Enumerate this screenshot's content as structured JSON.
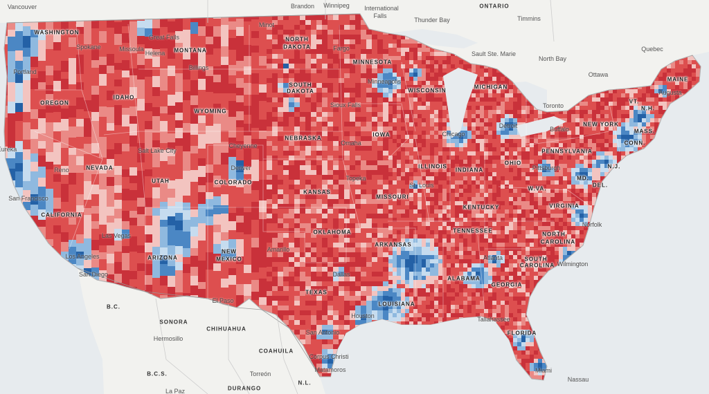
{
  "map": {
    "colors": {
      "water": "#e7ebee",
      "land": "#f4f4f2",
      "border": "#c9c9c9",
      "strong_rep": "#c9313a",
      "rep": "#dd4f4f",
      "lean_rep": "#ea8a86",
      "tilt_rep": "#f3c4c0",
      "tilt_dem": "#c6dcef",
      "lean_dem": "#8fb9df",
      "dem": "#4b87c4",
      "strong_dem": "#2461a6"
    },
    "state_labels": [
      {
        "id": "washington",
        "text": "WASHINGTON"
      },
      {
        "id": "oregon",
        "text": "OREGON"
      },
      {
        "id": "california",
        "text": "CALIFORNIA"
      },
      {
        "id": "nevada",
        "text": "NEVADA"
      },
      {
        "id": "idaho",
        "text": "IDAHO"
      },
      {
        "id": "montana",
        "text": "MONTANA"
      },
      {
        "id": "wyoming",
        "text": "WYOMING"
      },
      {
        "id": "utah",
        "text": "UTAH"
      },
      {
        "id": "colorado",
        "text": "COLORADO"
      },
      {
        "id": "arizona",
        "text": "ARIZONA"
      },
      {
        "id": "new-mexico-1",
        "text": "NEW"
      },
      {
        "id": "new-mexico-2",
        "text": "MEXICO"
      },
      {
        "id": "north-dakota-1",
        "text": "NORTH"
      },
      {
        "id": "north-dakota-2",
        "text": "DAKOTA"
      },
      {
        "id": "south-dakota-1",
        "text": "SOUTH"
      },
      {
        "id": "south-dakota-2",
        "text": "DAKOTA"
      },
      {
        "id": "nebraska",
        "text": "NEBRASKA"
      },
      {
        "id": "kansas",
        "text": "KANSAS"
      },
      {
        "id": "oklahoma",
        "text": "OKLAHOMA"
      },
      {
        "id": "texas",
        "text": "TEXAS"
      },
      {
        "id": "minnesota",
        "text": "MINNESOTA"
      },
      {
        "id": "iowa",
        "text": "IOWA"
      },
      {
        "id": "missouri",
        "text": "MISSOURI"
      },
      {
        "id": "arkansas",
        "text": "ARKANSAS"
      },
      {
        "id": "louisiana",
        "text": "LOUISIANA"
      },
      {
        "id": "wisconsin",
        "text": "WISCONSIN"
      },
      {
        "id": "illinois",
        "text": "ILLINOIS"
      },
      {
        "id": "michigan",
        "text": "MICHIGAN"
      },
      {
        "id": "indiana",
        "text": "INDIANA"
      },
      {
        "id": "ohio",
        "text": "OHIO"
      },
      {
        "id": "kentucky",
        "text": "KENTUCKY"
      },
      {
        "id": "tennessee",
        "text": "TENNESSEE"
      },
      {
        "id": "alabama",
        "text": "ALABAMA"
      },
      {
        "id": "georgia",
        "text": "GEORGIA"
      },
      {
        "id": "florida",
        "text": "FLORIDA"
      },
      {
        "id": "south-carolina-1",
        "text": "SOUTH"
      },
      {
        "id": "south-carolina-2",
        "text": "CAROLINA"
      },
      {
        "id": "north-carolina-1",
        "text": "NORTH"
      },
      {
        "id": "north-carolina-2",
        "text": "CAROLINA"
      },
      {
        "id": "virginia",
        "text": "VIRGINIA"
      },
      {
        "id": "west-virginia",
        "text": "W.VA."
      },
      {
        "id": "pennsylvania",
        "text": "PENNSYLVANIA"
      },
      {
        "id": "new-york",
        "text": "NEW YORK"
      },
      {
        "id": "maryland",
        "text": "MD."
      },
      {
        "id": "delaware",
        "text": "DEL."
      },
      {
        "id": "new-jersey",
        "text": "N.J."
      },
      {
        "id": "connecticut",
        "text": "CONN."
      },
      {
        "id": "massachusetts",
        "text": "MASS."
      },
      {
        "id": "vermont",
        "text": "VT."
      },
      {
        "id": "new-hampshire",
        "text": "N.H."
      },
      {
        "id": "maine",
        "text": "MAINE"
      }
    ],
    "foreign_labels": [
      {
        "id": "ontario",
        "text": "ONTARIO"
      },
      {
        "id": "bc-mexico",
        "text": "B.C."
      },
      {
        "id": "sonora",
        "text": "SONORA"
      },
      {
        "id": "chihuahua",
        "text": "CHIHUAHUA"
      },
      {
        "id": "coahuila",
        "text": "COAHUILA"
      },
      {
        "id": "durango",
        "text": "DURANGO"
      },
      {
        "id": "bcs",
        "text": "B.C.S."
      },
      {
        "id": "nuevo-leon",
        "text": "N.L."
      }
    ],
    "city_labels": [
      {
        "id": "vancouver",
        "text": "Vancouver"
      },
      {
        "id": "brandon",
        "text": "Brandon"
      },
      {
        "id": "winnipeg",
        "text": "Winnipeg"
      },
      {
        "id": "international-falls-1",
        "text": "International"
      },
      {
        "id": "international-falls-2",
        "text": "Falls"
      },
      {
        "id": "thunder-bay",
        "text": "Thunder Bay"
      },
      {
        "id": "timmins",
        "text": "Timmins"
      },
      {
        "id": "quebec",
        "text": "Quebec"
      },
      {
        "id": "sault-ste-marie",
        "text": "Sault Ste. Marie"
      },
      {
        "id": "north-bay",
        "text": "North Bay"
      },
      {
        "id": "ottawa",
        "text": "Ottawa"
      },
      {
        "id": "augusta",
        "text": "Augusta"
      },
      {
        "id": "toronto",
        "text": "Toronto"
      },
      {
        "id": "buffalo",
        "text": "Buffalo"
      },
      {
        "id": "spokane",
        "text": "Spokane"
      },
      {
        "id": "great-falls",
        "text": "Great Falls"
      },
      {
        "id": "missoula",
        "text": "Missoula"
      },
      {
        "id": "helena",
        "text": "Helena"
      },
      {
        "id": "portland",
        "text": "Portland"
      },
      {
        "id": "billings",
        "text": "Billings"
      },
      {
        "id": "minot",
        "text": "Minot"
      },
      {
        "id": "fargo",
        "text": "Fargo"
      },
      {
        "id": "minneapolis",
        "text": "Minneapolis"
      },
      {
        "id": "sioux-falls",
        "text": "Sioux Falls"
      },
      {
        "id": "eureka",
        "text": "Eureka"
      },
      {
        "id": "reno",
        "text": "Reno"
      },
      {
        "id": "salt-lake-city",
        "text": "Salt Lake City"
      },
      {
        "id": "cheyenne",
        "text": "Cheyenne"
      },
      {
        "id": "omaha",
        "text": "Omaha"
      },
      {
        "id": "denver",
        "text": "Denver"
      },
      {
        "id": "chicago",
        "text": "Chicago"
      },
      {
        "id": "detroit",
        "text": "Detroit"
      },
      {
        "id": "pittsburgh",
        "text": "Pittsburgh"
      },
      {
        "id": "san-francisco",
        "text": "San Francisco"
      },
      {
        "id": "topeka",
        "text": "Topeka"
      },
      {
        "id": "st-louis",
        "text": "St. Louis"
      },
      {
        "id": "las-vegas",
        "text": "Las Vegas"
      },
      {
        "id": "norfolk",
        "text": "Norfolk"
      },
      {
        "id": "amarillo",
        "text": "Amarillo"
      },
      {
        "id": "los-angeles",
        "text": "Los Angeles"
      },
      {
        "id": "san-diego",
        "text": "San Diego"
      },
      {
        "id": "atlanta",
        "text": "Atlanta"
      },
      {
        "id": "wilmington",
        "text": "Wilmington"
      },
      {
        "id": "dallas",
        "text": "Dallas"
      },
      {
        "id": "el-paso",
        "text": "El Paso"
      },
      {
        "id": "houston",
        "text": "Houston"
      },
      {
        "id": "tallahassee",
        "text": "Tallahassee"
      },
      {
        "id": "hermosillo",
        "text": "Hermosillo"
      },
      {
        "id": "san-antonio",
        "text": "San Antonio"
      },
      {
        "id": "corpus-christi",
        "text": "Corpus Christi"
      },
      {
        "id": "matamoros",
        "text": "Matamoros"
      },
      {
        "id": "torreon",
        "text": "Torreón"
      },
      {
        "id": "miami",
        "text": "Miami"
      },
      {
        "id": "nassau",
        "text": "Nassau"
      },
      {
        "id": "la-paz",
        "text": "La Paz"
      }
    ]
  }
}
